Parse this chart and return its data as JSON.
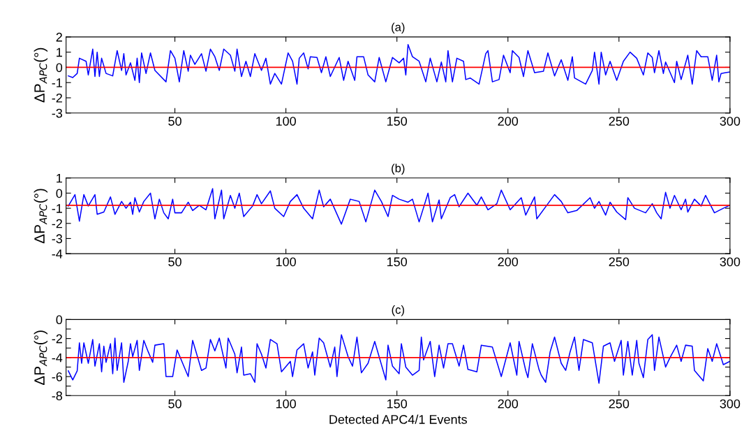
{
  "chart_data": [
    {
      "type": "line",
      "title": "(a)",
      "ylabel": "ΔP$_{APC}$(°)",
      "xlim": [
        1,
        300
      ],
      "xticks": [
        50,
        100,
        150,
        200,
        250,
        300
      ],
      "ylim": [
        -3,
        2
      ],
      "yticks": [
        -3,
        -2,
        -1,
        0,
        1,
        2
      ],
      "ref_lines": [
        {
          "axis": "y",
          "value": 0,
          "color": "#ff0000"
        }
      ],
      "series": [
        {
          "color": "#0000ff",
          "x": [
            2,
            4,
            6,
            7,
            10,
            11,
            13,
            14,
            15,
            16,
            17,
            19,
            22,
            24,
            26,
            27,
            28,
            30,
            32,
            33,
            34,
            35,
            37,
            39,
            41,
            46,
            48,
            50,
            52,
            54,
            56,
            57,
            59,
            62,
            64,
            66,
            68,
            70,
            72,
            75,
            77,
            78,
            80,
            82,
            84,
            86,
            89,
            91,
            93,
            95,
            98,
            101,
            103,
            105,
            106,
            108,
            110,
            111,
            114,
            116,
            118,
            120,
            124,
            126,
            128,
            131,
            132,
            135,
            137,
            140,
            142,
            145,
            148,
            151,
            153,
            154,
            155,
            157,
            160,
            163,
            165,
            168,
            170,
            172,
            173,
            175,
            177,
            180,
            181,
            183,
            187,
            190,
            191,
            193,
            196,
            198,
            201,
            202,
            205,
            207,
            209,
            212,
            216,
            218,
            221,
            224,
            227,
            229,
            230,
            235,
            238,
            239,
            241,
            242,
            244,
            246,
            249,
            252,
            255,
            258,
            261,
            263,
            265,
            266,
            268,
            270,
            271,
            275,
            276,
            278,
            281,
            283,
            285,
            287,
            290,
            292,
            294,
            295,
            296,
            298,
            300
          ],
          "values": [
            -0.56,
            -0.67,
            -0.4,
            0.6,
            0.4,
            -0.5,
            1.2,
            -0.6,
            1.0,
            -0.6,
            0.6,
            -0.4,
            -0.56,
            1.1,
            -0.2,
            0.9,
            -0.5,
            0.3,
            -0.85,
            0.6,
            -1.0,
            0.95,
            -0.4,
            0.95,
            -0.2,
            -0.95,
            1.1,
            0.6,
            -0.95,
            1.1,
            -0.25,
            0.8,
            0.2,
            0.9,
            -0.25,
            1.2,
            0.7,
            -0.2,
            1.2,
            0.8,
            -0.25,
            1.2,
            -0.6,
            0.4,
            -0.6,
            0.9,
            -0.2,
            0.6,
            -1.1,
            -0.4,
            -1.1,
            0.95,
            0.4,
            -1.1,
            0.6,
            0.95,
            -0.1,
            0.7,
            0.65,
            -0.35,
            0.7,
            -0.6,
            0.65,
            -0.85,
            0.4,
            -0.85,
            0.7,
            0.7,
            -0.5,
            -0.95,
            0.65,
            -0.95,
            0.65,
            0.3,
            0.6,
            -0.5,
            1.5,
            0.7,
            0.4,
            -0.95,
            0.6,
            -0.95,
            0.35,
            -0.95,
            1.1,
            -0.95,
            0.6,
            0.4,
            -0.8,
            -0.7,
            -1.1,
            0.9,
            1.1,
            -0.95,
            -0.8,
            0.8,
            -0.35,
            1.1,
            0.65,
            -0.6,
            1.1,
            -0.35,
            -0.25,
            0.95,
            -0.56,
            0.5,
            -0.85,
            0.7,
            -0.7,
            -1.1,
            -0.2,
            1.0,
            -1.1,
            1.0,
            -0.5,
            0.4,
            -0.85,
            0.4,
            1.0,
            0.6,
            -0.5,
            0.95,
            0.65,
            -0.35,
            1.1,
            -0.4,
            0.35,
            -1.0,
            0.4,
            -0.8,
            0.8,
            -1.1,
            1.1,
            0.7,
            0.7,
            -0.85,
            0.8,
            -0.95,
            -0.4,
            -0.35,
            -0.3
          ]
        }
      ]
    },
    {
      "type": "line",
      "title": "(b)",
      "ylabel": "ΔP$_{APC}$(°)",
      "xlim": [
        1,
        300
      ],
      "xticks": [
        50,
        100,
        150,
        200,
        250,
        300
      ],
      "ylim": [
        -4,
        1
      ],
      "yticks": [
        -4,
        -3,
        -2,
        -1,
        0,
        1
      ],
      "ref_lines": [
        {
          "axis": "y",
          "value": -0.8,
          "color": "#ff0000"
        }
      ],
      "series": [
        {
          "color": "#0000ff",
          "x": [
            2,
            5,
            7,
            9,
            11,
            14,
            15,
            18,
            21,
            23,
            26,
            28,
            30,
            31,
            32,
            34,
            36,
            39,
            41,
            43,
            45,
            47,
            49,
            50,
            53,
            56,
            58,
            61,
            64,
            67,
            68,
            71,
            72,
            75,
            77,
            79,
            81,
            85,
            87,
            89,
            93,
            95,
            99,
            102,
            105,
            108,
            112,
            115,
            117,
            120,
            125,
            129,
            133,
            136,
            140,
            143,
            146,
            148,
            151,
            155,
            157,
            160,
            164,
            166,
            169,
            170,
            174,
            176,
            178,
            182,
            186,
            188,
            191,
            195,
            197,
            201,
            206,
            208,
            212,
            213,
            218,
            221,
            224,
            227,
            231,
            237,
            239,
            241,
            244,
            246,
            249,
            253,
            254,
            257,
            262,
            265,
            267,
            269,
            271,
            273,
            275,
            278,
            280,
            281,
            284,
            287,
            289,
            293,
            297,
            300
          ],
          "values": [
            -0.85,
            -0.1,
            -1.85,
            -0.1,
            -0.85,
            -0.1,
            -1.4,
            -1.25,
            -0.25,
            -1.4,
            -0.55,
            -1.0,
            -0.6,
            -1.4,
            -0.3,
            -1.25,
            -0.55,
            0,
            -1.7,
            -0.4,
            -1.3,
            -1.7,
            -0.4,
            -1.3,
            -1.3,
            -0.6,
            -1.15,
            -0.8,
            -1.1,
            0.3,
            -1.7,
            0.2,
            -1.7,
            -0.15,
            -1.0,
            0,
            -1.55,
            -0.85,
            -0.1,
            -0.7,
            0.15,
            -1.0,
            -1.55,
            -0.55,
            -0.1,
            -1.0,
            -1.7,
            0.2,
            -0.9,
            -0.4,
            -2.05,
            -0.4,
            -0.55,
            -1.9,
            0.2,
            -0.55,
            -1.55,
            -0.15,
            -0.4,
            -0.6,
            -0.4,
            -1.9,
            0,
            -1.9,
            -0.45,
            -1.7,
            -0.3,
            -0.1,
            -0.9,
            0,
            -0.8,
            -0.25,
            -1.1,
            -0.7,
            0.2,
            -1.1,
            -0.3,
            -1.45,
            -0.25,
            -1.7,
            -0.7,
            -0.1,
            -0.55,
            -1.3,
            -1.15,
            -0.3,
            -1.0,
            -0.55,
            -1.45,
            -0.6,
            -1.25,
            -1.75,
            -0.3,
            -1.0,
            -1.3,
            -0.7,
            -1.3,
            -1.7,
            0.05,
            -1.0,
            -0.15,
            -1.1,
            -0.4,
            -1.25,
            -0.4,
            -0.85,
            -0.15,
            -1.3,
            -1.0,
            -0.8
          ]
        }
      ]
    },
    {
      "type": "line",
      "title": "(c)",
      "ylabel": "ΔP$_{APC}$(°)",
      "xlabel": "Detected APC4/1 Events",
      "xlim": [
        1,
        300
      ],
      "xticks": [
        50,
        100,
        150,
        200,
        250,
        300
      ],
      "ylim": [
        -8,
        0
      ],
      "yticks": [
        -8,
        {
          "value": -7,
          "label": null
        },
        -6,
        {
          "value": -5,
          "label": null
        },
        -4,
        {
          "value": -3,
          "label": null
        },
        -2,
        {
          "value": -1,
          "label": null
        },
        0
      ],
      "ref_lines": [
        {
          "axis": "y",
          "value": -4,
          "color": "#ff0000"
        }
      ],
      "series": [
        {
          "color": "#0000ff",
          "x": [
            2,
            4,
            6,
            7,
            8,
            9,
            11,
            13,
            14,
            16,
            17,
            18,
            19,
            21,
            22,
            23,
            24,
            26,
            27,
            29,
            30,
            31,
            33,
            34,
            36,
            38,
            40,
            41,
            45,
            46,
            49,
            51,
            56,
            58,
            62,
            64,
            66,
            68,
            70,
            73,
            74,
            77,
            78,
            80,
            81,
            84,
            86,
            87,
            89,
            91,
            93,
            96,
            98,
            102,
            103,
            105,
            108,
            110,
            112,
            113,
            115,
            117,
            120,
            122,
            123,
            125,
            128,
            130,
            132,
            134,
            137,
            140,
            145,
            146,
            148,
            151,
            152,
            154,
            157,
            160,
            161,
            162,
            165,
            167,
            169,
            171,
            173,
            175,
            178,
            180,
            182,
            186,
            188,
            193,
            197,
            201,
            204,
            205,
            208,
            209,
            211,
            214,
            215,
            217,
            219,
            221,
            224,
            226,
            228,
            230,
            232,
            234,
            238,
            241,
            243,
            246,
            248,
            251,
            252,
            254,
            256,
            258,
            259,
            261,
            263,
            265,
            266,
            268,
            271,
            273,
            276,
            278,
            280,
            283,
            284,
            288,
            290,
            292,
            294,
            296,
            297,
            300
          ],
          "values": [
            -5.4,
            -6.35,
            -5.4,
            -2.45,
            -4.6,
            -2.45,
            -4.6,
            -2.1,
            -4.9,
            -2.55,
            -5.5,
            -2.8,
            -4.5,
            -2.55,
            -5.7,
            -1.95,
            -5.35,
            -2.45,
            -6.6,
            -4.4,
            -2.55,
            -3.9,
            -2.2,
            -5.35,
            -2.2,
            -3.4,
            -4.5,
            -2.7,
            -2.55,
            -6.0,
            -6.0,
            -3.2,
            -6.0,
            -2.2,
            -5.35,
            -5.1,
            -2.1,
            -3.3,
            -1.95,
            -5.1,
            -1.95,
            -3.65,
            -5.6,
            -2.9,
            -5.85,
            -5.7,
            -6.6,
            -2.55,
            -3.65,
            -5.1,
            -2.1,
            -2.55,
            -5.5,
            -4.4,
            -6.0,
            -3.2,
            -2.55,
            -5.1,
            -3.4,
            -5.85,
            -1.95,
            -2.45,
            -5.0,
            -2.9,
            -6.0,
            -1.6,
            -3.9,
            -4.9,
            -1.85,
            -5.6,
            -4.6,
            -2.3,
            -6.35,
            -2.7,
            -4.9,
            -5.7,
            -2.55,
            -5.0,
            -5.85,
            -5.35,
            -1.85,
            -4.25,
            -2.3,
            -6.0,
            -2.7,
            -5.1,
            -2.55,
            -2.55,
            -4.9,
            -2.7,
            -5.25,
            -5.5,
            -2.7,
            -2.9,
            -6.0,
            -2.45,
            -5.85,
            -2.3,
            -5.35,
            -6.1,
            -2.55,
            -5.25,
            -5.85,
            -6.6,
            -3.4,
            -1.85,
            -4.6,
            -5.35,
            -3.4,
            -1.85,
            -5.35,
            -2.1,
            -2.45,
            -6.7,
            -2.8,
            -2.45,
            -4.4,
            -2.2,
            -5.85,
            -2.3,
            -5.85,
            -2.2,
            -4.6,
            -6.1,
            -2.1,
            -1.6,
            -5.35,
            -1.85,
            -5.0,
            -4.0,
            -2.7,
            -4.4,
            -2.7,
            -2.8,
            -5.35,
            -6.45,
            -3.05,
            -4.4,
            -2.55,
            -4.0,
            -4.75,
            -4.4
          ]
        }
      ]
    }
  ]
}
